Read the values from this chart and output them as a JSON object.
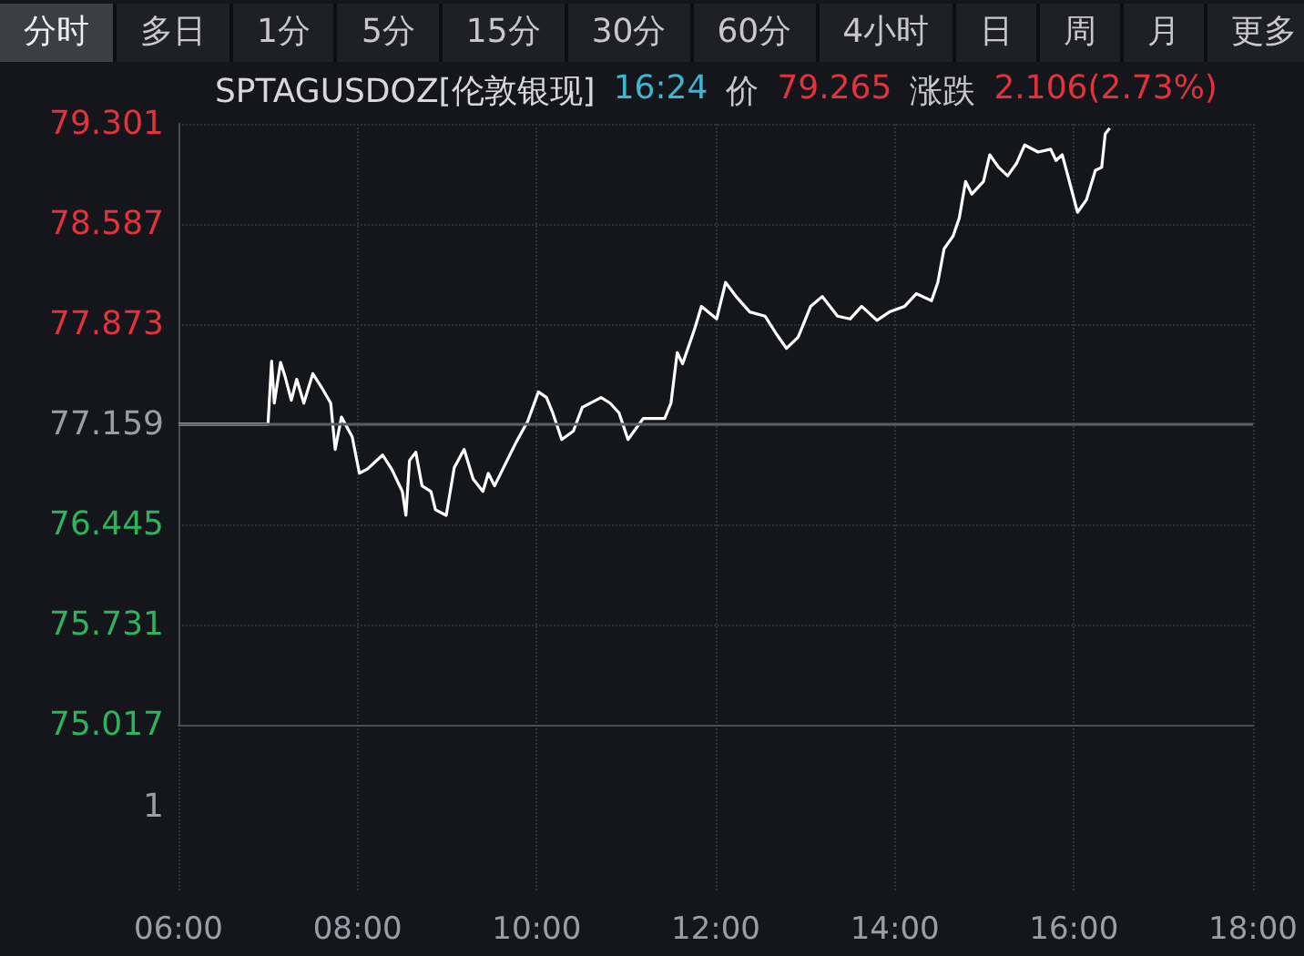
{
  "chart_data": {
    "type": "line",
    "title": "SPTAGUSDOZ[伦敦银现]",
    "annotations": [
      "分时",
      "多日",
      "1分",
      "5分",
      "15分",
      "30分",
      "60分",
      "4小时",
      "日",
      "周",
      "月",
      "更多",
      "16:24",
      "价",
      "79.265",
      "涨跌",
      "2.106(2.73%)",
      "1"
    ],
    "x": [
      6.0,
      7.0,
      7.04,
      7.07,
      7.14,
      7.19,
      7.26,
      7.32,
      7.4,
      7.5,
      7.6,
      7.7,
      7.75,
      7.82,
      7.94,
      8.02,
      8.11,
      8.28,
      8.38,
      8.5,
      8.54,
      8.58,
      8.65,
      8.72,
      8.82,
      8.87,
      8.99,
      9.08,
      9.19,
      9.29,
      9.4,
      9.46,
      9.53,
      9.63,
      9.77,
      9.9,
      10.02,
      10.11,
      10.18,
      10.28,
      10.41,
      10.51,
      10.72,
      10.82,
      10.92,
      11.02,
      11.19,
      11.43,
      11.5,
      11.57,
      11.63,
      11.77,
      11.84,
      12.01,
      12.11,
      12.24,
      12.38,
      12.55,
      12.68,
      12.79,
      12.92,
      13.06,
      13.19,
      13.36,
      13.5,
      13.63,
      13.8,
      13.94,
      14.11,
      14.24,
      14.41,
      14.48,
      14.55,
      14.65,
      14.72,
      14.79,
      14.86,
      14.99,
      15.06,
      15.16,
      15.26,
      15.36,
      15.45,
      15.6,
      15.74,
      15.8,
      15.87,
      15.97,
      16.04,
      16.14,
      16.24,
      16.31,
      16.35,
      16.4
    ],
    "series": [
      {
        "color": "#ffffff",
        "values": [
          77.16,
          77.16,
          77.61,
          77.31,
          77.6,
          77.5,
          77.33,
          77.48,
          77.31,
          77.52,
          77.42,
          77.31,
          76.98,
          77.21,
          77.07,
          76.81,
          76.84,
          76.94,
          76.84,
          76.68,
          76.51,
          76.9,
          76.96,
          76.72,
          76.68,
          76.55,
          76.51,
          76.85,
          76.98,
          76.77,
          76.68,
          76.81,
          76.72,
          76.85,
          77.03,
          77.18,
          77.39,
          77.35,
          77.24,
          77.05,
          77.11,
          77.28,
          77.35,
          77.31,
          77.24,
          77.05,
          77.2,
          77.2,
          77.31,
          77.67,
          77.59,
          77.85,
          78.0,
          77.91,
          78.17,
          78.06,
          77.96,
          77.93,
          77.8,
          77.7,
          77.78,
          78.0,
          78.07,
          77.93,
          77.91,
          78.0,
          77.9,
          77.96,
          78.0,
          78.09,
          78.04,
          78.17,
          78.41,
          78.5,
          78.63,
          78.89,
          78.8,
          78.89,
          79.08,
          78.99,
          78.93,
          79.02,
          79.15,
          79.1,
          79.12,
          79.04,
          79.08,
          78.84,
          78.67,
          78.76,
          78.97,
          78.99,
          79.23,
          79.27
        ]
      }
    ],
    "xlim": [
      6,
      18
    ],
    "xticks": [
      {
        "value": 6,
        "label": "06:00"
      },
      {
        "value": 8,
        "label": "08:00"
      },
      {
        "value": 10,
        "label": "10:00"
      },
      {
        "value": 12,
        "label": "12:00"
      },
      {
        "value": 14,
        "label": "14:00"
      },
      {
        "value": 16,
        "label": "16:00"
      },
      {
        "value": 18,
        "label": "18:00"
      }
    ],
    "ylim": [
      75.017,
      79.301
    ],
    "yticks": [
      75.017,
      75.731,
      76.445,
      77.159,
      77.873,
      78.587,
      79.301
    ],
    "ref_lines": [
      {
        "axis": "y",
        "value": 77.159,
        "color": "#5a5e66"
      }
    ],
    "grid": true,
    "marker": "none",
    "line_style": "solid"
  }
}
